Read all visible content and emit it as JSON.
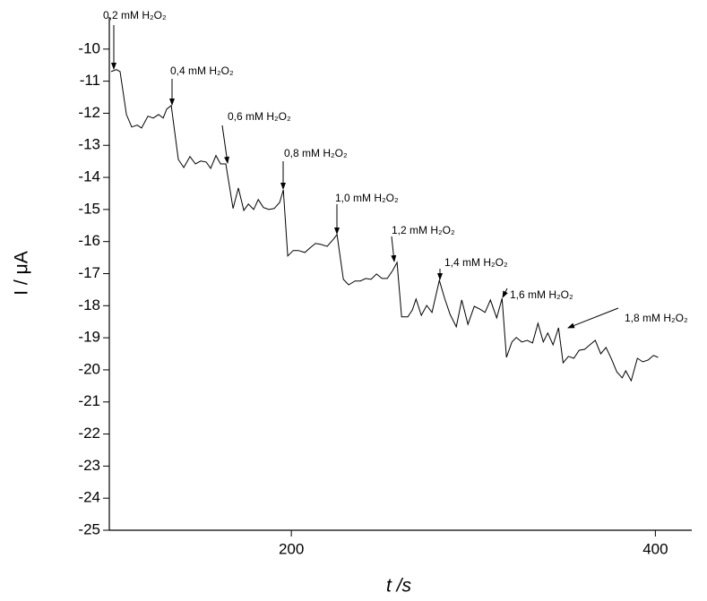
{
  "chart_data": {
    "type": "line",
    "x_label": "t /s",
    "y_label": "I / μA",
    "xlim": [
      100,
      420
    ],
    "ylim": [
      -25,
      -9
    ],
    "xticks": [
      200,
      400
    ],
    "yticks": [
      -10,
      -11,
      -12,
      -13,
      -14,
      -15,
      -16,
      -17,
      -18,
      -19,
      -20,
      -21,
      -22,
      -23,
      -24,
      -25
    ],
    "color": "#000000",
    "annotations": [
      "0,2 mM H₂O₂",
      "0,4 mM H₂O₂",
      "0,6 mM H₂O₂",
      "0,8 mM H₂O₂",
      "1,0 mM H₂O₂",
      "1,2 mM H₂O₂",
      "1,4 mM H₂O₂",
      "1,6 mM H₂O₂",
      "1,8 mM H₂O₂"
    ],
    "x": [
      101.0,
      103.9,
      105.9,
      109.4,
      112.3,
      115.3,
      117.7,
      121.2,
      124.1,
      127.1,
      129.6,
      131.5,
      134.0,
      137.9,
      140.9,
      144.3,
      147.3,
      150.2,
      153.2,
      155.7,
      158.6,
      161.1,
      164.0,
      168.0,
      170.9,
      173.9,
      176.4,
      179.3,
      181.8,
      184.7,
      187.7,
      190.6,
      193.6,
      195.6,
      198.0,
      201.0,
      203.9,
      207.4,
      210.3,
      213.3,
      216.3,
      219.7,
      223.2,
      225.1,
      228.6,
      231.5,
      235.0,
      237.9,
      240.9,
      243.8,
      246.8,
      249.8,
      252.7,
      255.7,
      258.1,
      260.6,
      264.0,
      266.5,
      268.5,
      271.4,
      274.4,
      277.3,
      281.3,
      284.2,
      287.2,
      290.6,
      293.6,
      297.0,
      300.5,
      303.4,
      306.4,
      309.4,
      312.8,
      315.8,
      318.2,
      321.2,
      323.6,
      326.6,
      329.6,
      332.5,
      335.5,
      338.4,
      340.9,
      343.8,
      346.8,
      349.3,
      352.2,
      355.2,
      358.1,
      361.1,
      364.0,
      367.0,
      370.0,
      372.9,
      375.9,
      378.8,
      381.8,
      383.7,
      386.7,
      390.1,
      393.1,
      396.1,
      399.0,
      401.5
    ],
    "values": [
      -10.7,
      -10.64,
      -10.7,
      -12.04,
      -12.43,
      -12.37,
      -12.46,
      -12.09,
      -12.15,
      -12.04,
      -12.15,
      -11.87,
      -11.76,
      -13.44,
      -13.69,
      -13.35,
      -13.58,
      -13.49,
      -13.52,
      -13.72,
      -13.32,
      -13.58,
      -13.58,
      -14.97,
      -14.33,
      -15.03,
      -14.83,
      -15.0,
      -14.69,
      -14.94,
      -15.0,
      -14.97,
      -14.78,
      -14.39,
      -16.45,
      -16.28,
      -16.28,
      -16.34,
      -16.2,
      -16.06,
      -16.09,
      -16.15,
      -15.92,
      -15.78,
      -17.18,
      -17.35,
      -17.23,
      -17.23,
      -17.15,
      -17.18,
      -17.01,
      -17.15,
      -17.15,
      -16.9,
      -16.65,
      -18.35,
      -18.35,
      -18.13,
      -17.79,
      -18.3,
      -17.99,
      -18.21,
      -17.21,
      -17.77,
      -18.27,
      -18.66,
      -17.82,
      -18.58,
      -18.02,
      -18.1,
      -18.21,
      -17.82,
      -18.38,
      -17.77,
      -19.61,
      -19.13,
      -18.99,
      -19.13,
      -19.08,
      -19.16,
      -18.55,
      -19.13,
      -18.85,
      -19.22,
      -18.69,
      -19.78,
      -19.58,
      -19.64,
      -19.39,
      -19.36,
      -19.22,
      -19.08,
      -19.5,
      -19.3,
      -19.66,
      -20.06,
      -20.25,
      -20.03,
      -20.34,
      -19.64,
      -19.75,
      -19.69,
      -19.55,
      -19.61
    ]
  }
}
